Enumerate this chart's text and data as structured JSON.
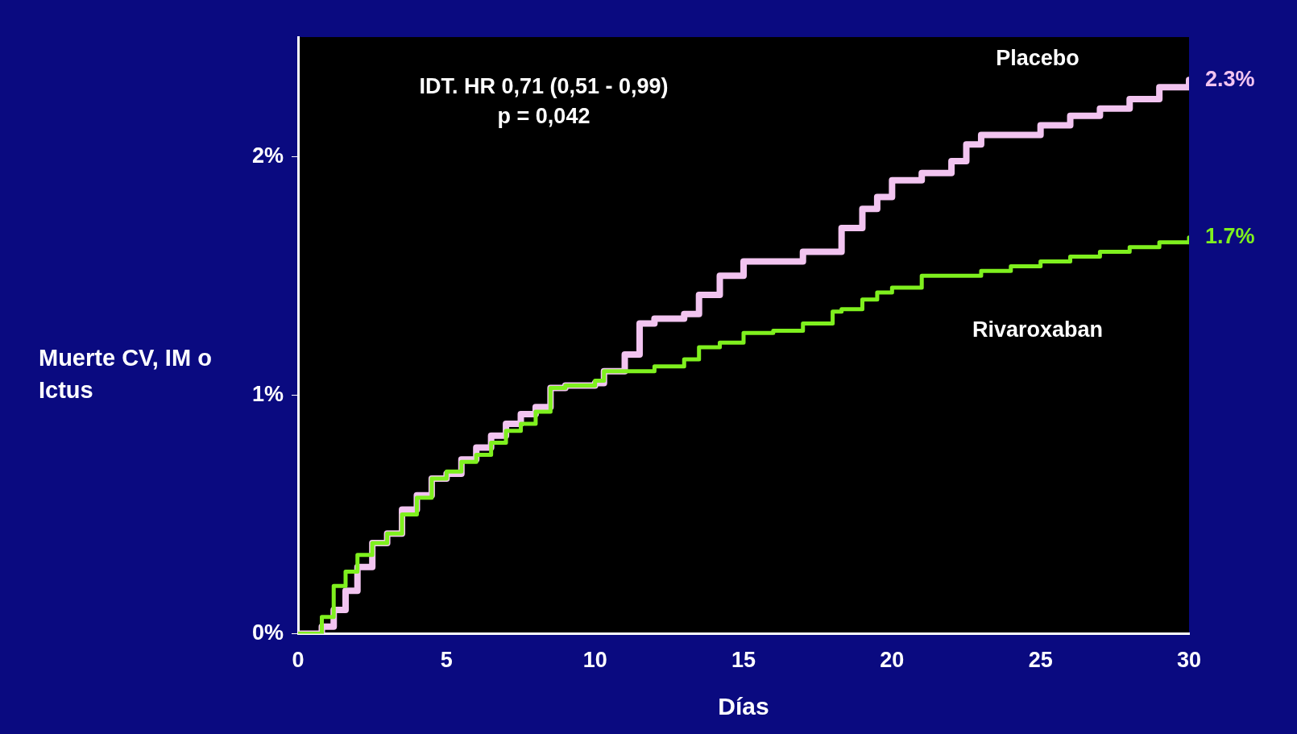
{
  "chart_data": {
    "type": "step",
    "xlabel": "Días",
    "ylabel": "Muerte CV, IM o Ictus",
    "annotations": [
      "IDT. HR 0,71 (0,51 - 0,99)",
      "p = 0,042"
    ],
    "x": [
      0,
      0.8,
      1.2,
      1.6,
      2,
      2.5,
      3,
      3.5,
      4,
      4.5,
      5,
      5.5,
      6,
      6.5,
      7,
      7.5,
      8,
      8.5,
      9,
      10,
      10.3,
      11,
      11.5,
      12,
      13,
      13.5,
      14.2,
      15,
      16,
      17,
      18,
      18.3,
      19,
      19.5,
      20,
      21,
      22,
      22.5,
      23,
      24,
      25,
      26,
      27,
      28,
      29,
      30
    ],
    "series": [
      {
        "name": "Placebo",
        "color": "#f2c4f0",
        "values": [
          0,
          0.03,
          0.1,
          0.18,
          0.28,
          0.38,
          0.42,
          0.52,
          0.58,
          0.65,
          0.67,
          0.73,
          0.78,
          0.83,
          0.88,
          0.92,
          0.95,
          1.03,
          1.04,
          1.05,
          1.1,
          1.17,
          1.3,
          1.32,
          1.34,
          1.42,
          1.5,
          1.56,
          1.56,
          1.6,
          1.6,
          1.7,
          1.78,
          1.83,
          1.9,
          1.93,
          1.98,
          2.05,
          2.09,
          2.09,
          2.13,
          2.17,
          2.2,
          2.24,
          2.29,
          2.32
        ],
        "value_labels": [
          null,
          null,
          null,
          null,
          null,
          null,
          null,
          null,
          null,
          null,
          null,
          null,
          null,
          null,
          null,
          null,
          null,
          null,
          null,
          null,
          null,
          null,
          null,
          null,
          null,
          null,
          null,
          null,
          null,
          null,
          null,
          null,
          null,
          null,
          null,
          null,
          null,
          null,
          null,
          null,
          null,
          null,
          null,
          null,
          null,
          "2.3%"
        ]
      },
      {
        "name": "Rivaroxaban",
        "color": "#7ff01e",
        "values": [
          0,
          0.07,
          0.2,
          0.26,
          0.33,
          0.38,
          0.42,
          0.5,
          0.57,
          0.65,
          0.68,
          0.72,
          0.75,
          0.8,
          0.85,
          0.88,
          0.93,
          1.03,
          1.04,
          1.06,
          1.1,
          1.1,
          1.1,
          1.12,
          1.15,
          1.2,
          1.22,
          1.26,
          1.27,
          1.3,
          1.35,
          1.36,
          1.4,
          1.43,
          1.45,
          1.5,
          1.5,
          1.5,
          1.52,
          1.54,
          1.56,
          1.58,
          1.6,
          1.62,
          1.64,
          1.66
        ],
        "value_labels": [
          null,
          null,
          null,
          null,
          null,
          null,
          null,
          null,
          null,
          null,
          null,
          null,
          null,
          null,
          null,
          null,
          null,
          null,
          null,
          null,
          null,
          null,
          null,
          null,
          null,
          null,
          null,
          null,
          null,
          null,
          null,
          null,
          null,
          null,
          null,
          null,
          null,
          null,
          null,
          null,
          null,
          null,
          null,
          null,
          null,
          "1.7%"
        ]
      }
    ],
    "xlim": [
      0,
      30
    ],
    "xticks": [
      0,
      5,
      10,
      15,
      20,
      25,
      30
    ],
    "ylim": [
      0,
      2.5
    ],
    "yticks": [
      {
        "value": 0,
        "label": "0%"
      },
      {
        "value": 1,
        "label": "1%"
      },
      {
        "value": 2,
        "label": "2%"
      }
    ],
    "grid": false,
    "legend": false,
    "line_style": "solid",
    "marker": "none"
  }
}
